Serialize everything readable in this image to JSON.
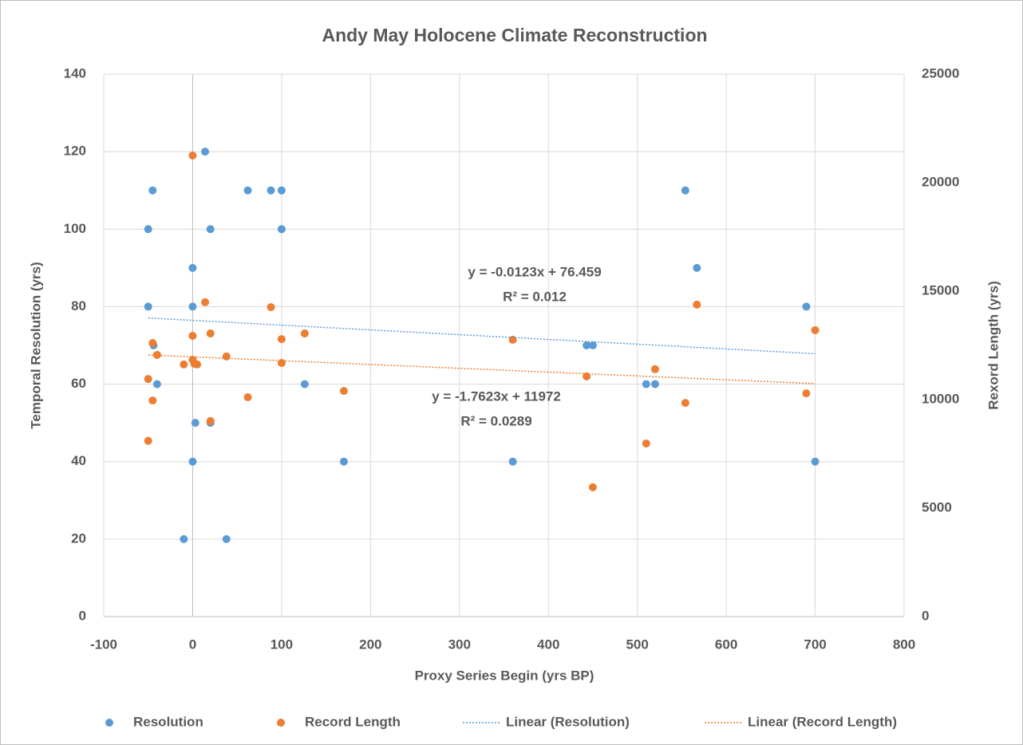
{
  "chart_data": {
    "type": "scatter",
    "title": "Andy May Holocene Climate Reconstruction",
    "x_label": "Proxy Series Begin (yrs BP)",
    "y_label": "Temporal Resolution (yrs)",
    "y2_label": "Rexord Length (yrs)",
    "xlim": [
      -100,
      800
    ],
    "xticks": [
      -100,
      0,
      100,
      200,
      300,
      400,
      500,
      600,
      700,
      800
    ],
    "ylim": [
      0,
      140
    ],
    "yticks": [
      0,
      20,
      40,
      60,
      80,
      100,
      120,
      140
    ],
    "y2lim": [
      0,
      25000
    ],
    "y2ticks": [
      0,
      5000,
      10000,
      15000,
      20000,
      25000
    ],
    "grid": true,
    "legend": "bottom",
    "series": [
      {
        "name": "Resolution",
        "color": "#5b9bd5",
        "x": [
          -50,
          -45,
          -50,
          -44,
          -40,
          0,
          0,
          0,
          3,
          -10,
          14,
          20,
          20,
          38,
          62,
          88,
          100,
          100,
          126,
          170,
          360,
          443,
          450,
          510,
          520,
          554,
          567,
          690,
          700
        ],
        "values": [
          100,
          110,
          80,
          70,
          60,
          90,
          80,
          40,
          50,
          20,
          120,
          100,
          50,
          20,
          110,
          110,
          110,
          100,
          60,
          40,
          40,
          70,
          70,
          60,
          60,
          110,
          90,
          80,
          40
        ]
      },
      {
        "name": "Record Length",
        "color": "#ed7d31",
        "axis": "y2",
        "x": [
          0,
          -50,
          -50,
          -45,
          -45,
          -40,
          -10,
          0,
          0,
          2,
          5,
          14,
          20,
          20,
          38,
          62,
          88,
          100,
          100,
          126,
          170,
          360,
          443,
          450,
          510,
          520,
          554,
          567,
          690,
          700
        ],
        "values": [
          21250,
          8100,
          10950,
          9960,
          12610,
          12060,
          11620,
          12940,
          11840,
          11650,
          11620,
          14490,
          13050,
          9010,
          11990,
          10110,
          14260,
          12790,
          11690,
          13050,
          10400,
          12760,
          11070,
          5960,
          7980,
          11400,
          9850,
          14380,
          10290,
          13200
        ]
      }
    ],
    "trendlines": [
      {
        "name": "Linear (Resolution)",
        "series": 0,
        "slope": -0.0123,
        "intercept": 76.459,
        "equation": "y = -0.0123x + 76.459",
        "r_squared": "R² = 0.012"
      },
      {
        "name": "Linear (Record Length)",
        "series": 1,
        "slope": -1.7623,
        "intercept": 11972,
        "equation": "y = -1.7623x + 11972",
        "r_squared": "R² = 0.0289"
      }
    ]
  }
}
